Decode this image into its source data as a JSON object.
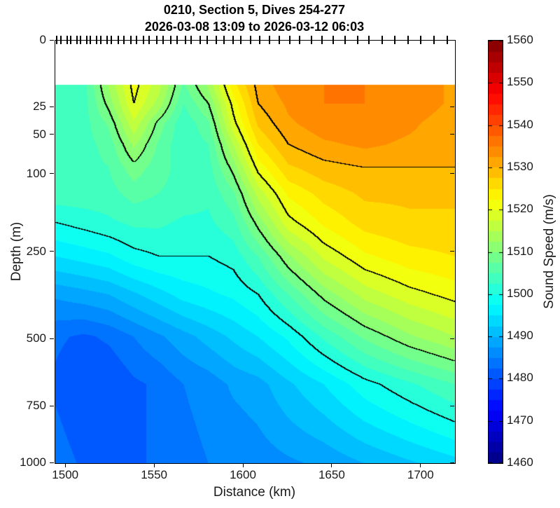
{
  "header": {
    "title_line1": "0210, Section 5, Dives 254-277",
    "title_line2": "2026-03-08 13:09 to 2026-03-12 06:03"
  },
  "axes": {
    "x": {
      "label": "Distance (km)",
      "ticks": [
        1500,
        1550,
        1600,
        1650,
        1700
      ],
      "range": [
        1494,
        1719
      ]
    },
    "y": {
      "label": "Depth (m)",
      "ticks": [
        0,
        25,
        50,
        100,
        250,
        500,
        750,
        1000
      ],
      "range": [
        0,
        1000
      ],
      "scale": "sqrt"
    }
  },
  "colorbar": {
    "label": "Sound Speed (m/s)",
    "ticks": [
      1460,
      1470,
      1480,
      1490,
      1500,
      1510,
      1520,
      1530,
      1540,
      1550,
      1560
    ],
    "range": [
      1460,
      1560
    ],
    "colormap": "jet"
  },
  "chart_data": {
    "type": "heatmap",
    "title": "0210, Section 5, Dives 254-277",
    "subtitle": "2026-03-08 13:09 to 2026-03-12 06:03",
    "xlabel": "Distance (km)",
    "ylabel": "Depth (m)",
    "zlabel": "Sound Speed (m/s)",
    "x_range_km": [
      1494,
      1719
    ],
    "depth_range_m": [
      0,
      1000
    ],
    "depth_axis_scale": "sqrt",
    "data_top_depth_m": 11,
    "color_axis": [
      1460,
      1560
    ],
    "colormap": "jet",
    "fill_step_ms": 2.5,
    "contour_levels": [
      1500,
      1510,
      1520,
      1530,
      1540
    ],
    "x_km": [
      1494,
      1510,
      1524,
      1538,
      1552,
      1566,
      1580,
      1594,
      1608,
      1625,
      1645,
      1668,
      1693,
      1719
    ],
    "depth_m": [
      11,
      22,
      38,
      60,
      90,
      130,
      185,
      260,
      360,
      490,
      660,
      1000
    ],
    "sound_speed_ms": [
      [
        1503,
        1504,
        1513,
        1521,
        1516,
        1507,
        1513,
        1524,
        1531,
        1534,
        1535,
        1535,
        1534,
        1532
      ],
      [
        1503,
        1504,
        1511,
        1520,
        1514,
        1505,
        1510,
        1521,
        1530,
        1533,
        1535,
        1535,
        1534,
        1532
      ],
      [
        1503,
        1504,
        1508,
        1517,
        1509,
        1503,
        1507,
        1519,
        1528,
        1532,
        1534,
        1534,
        1533,
        1531
      ],
      [
        1503,
        1504,
        1506,
        1513,
        1507,
        1503,
        1505,
        1515,
        1525,
        1530,
        1532,
        1533,
        1532,
        1531
      ],
      [
        1504,
        1504,
        1505,
        1509,
        1506,
        1504,
        1504,
        1511,
        1521,
        1527,
        1529,
        1530,
        1530,
        1530
      ],
      [
        1504,
        1504,
        1504,
        1506,
        1505,
        1504,
        1503,
        1507,
        1516,
        1523,
        1526,
        1528,
        1528,
        1528
      ],
      [
        1500,
        1501,
        1502,
        1503,
        1503,
        1502,
        1502,
        1504,
        1511,
        1519,
        1523,
        1526,
        1527,
        1527
      ],
      [
        1495,
        1496,
        1497,
        1499,
        1500,
        1500,
        1500,
        1501,
        1505,
        1512,
        1518,
        1522,
        1524,
        1525
      ],
      [
        1488,
        1489,
        1490,
        1492,
        1494,
        1496,
        1497,
        1498,
        1500,
        1505,
        1511,
        1516,
        1519,
        1521
      ],
      [
        1483,
        1482,
        1483,
        1485,
        1487,
        1489,
        1491,
        1493,
        1495,
        1498,
        1503,
        1508,
        1512,
        1515
      ],
      [
        1482,
        1480,
        1480,
        1482,
        1483,
        1485,
        1486,
        1488,
        1489,
        1492,
        1495,
        1499,
        1502,
        1505
      ],
      [
        1484,
        1482,
        1481,
        1482,
        1483,
        1484,
        1485,
        1485,
        1486,
        1487,
        1488,
        1490,
        1492,
        1494
      ]
    ],
    "dive_tick_positions_km": [
      1495,
      1497.5,
      1501,
      1503,
      1506.5,
      1508.5,
      1512,
      1514,
      1517.5,
      1520,
      1523.5,
      1526,
      1530,
      1533,
      1537,
      1540,
      1544,
      1547,
      1551.5,
      1555,
      1559.5,
      1563,
      1567.5,
      1571,
      1576,
      1580,
      1585,
      1589.5,
      1594.5,
      1599,
      1604.5,
      1609.5,
      1615,
      1620.5,
      1626.5,
      1632,
      1638.5,
      1644.5,
      1651,
      1657.5,
      1664.5,
      1671,
      1678.5,
      1685.5,
      1693,
      1700,
      1707.5,
      1715
    ]
  },
  "layout_colors": {
    "background": "#ffffff",
    "axis_line": "#000000",
    "contour_line": "#000000",
    "text": "#1a1a1a"
  }
}
